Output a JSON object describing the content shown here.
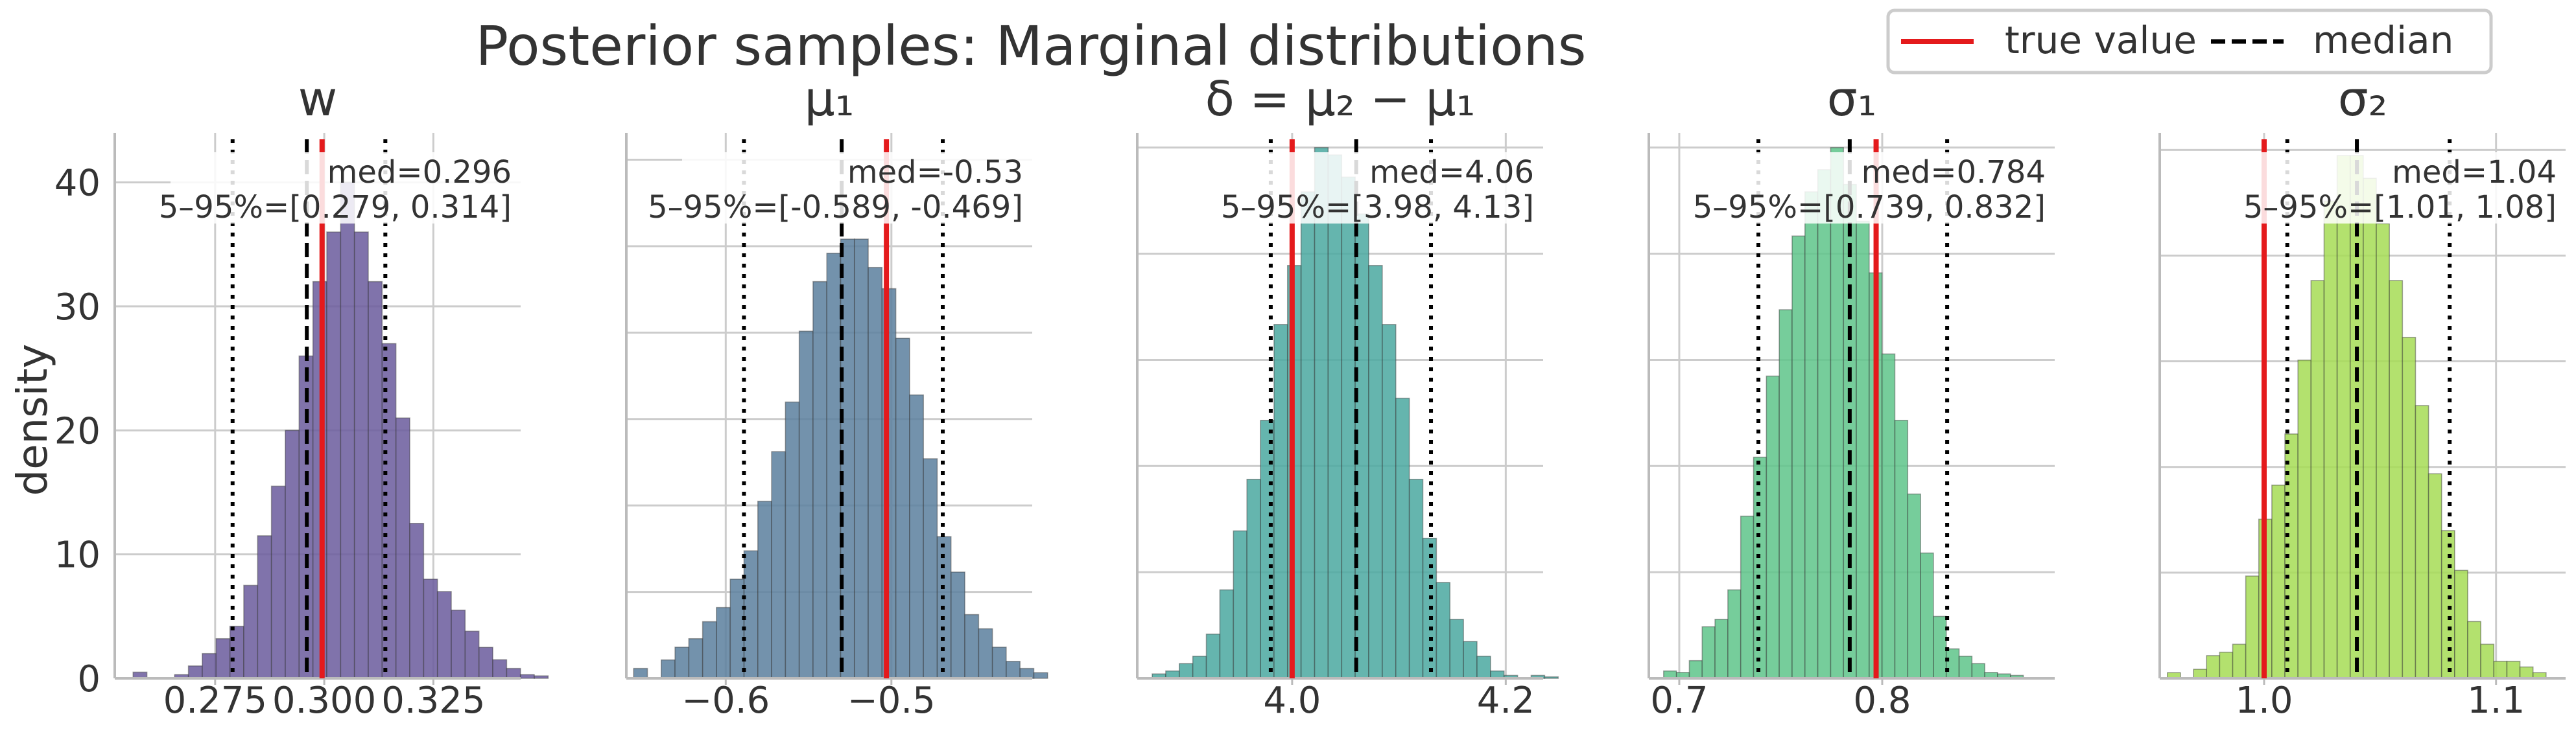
{
  "suptitle": "Posterior samples: Marginal distributions",
  "ylabel": "density",
  "legend": {
    "placement": "top-right",
    "entries": [
      {
        "label": "true value",
        "color": "#e41a1c",
        "style": "solid"
      },
      {
        "label": "median",
        "color": "#000000",
        "style": "dashed"
      }
    ]
  },
  "chart_data": [
    {
      "type": "histogram",
      "title": "w",
      "color": "#6a5a9c",
      "xlim": [
        0.252,
        0.345
      ],
      "ylim": [
        0,
        44
      ],
      "xticks": [
        0.275,
        0.3,
        0.325
      ],
      "xticklabels": [
        "0.275",
        "0.300",
        "0.325"
      ],
      "yticks": [
        0,
        10,
        20,
        30,
        40
      ],
      "yticklabels": [
        "0",
        "10",
        "20",
        "30",
        "40"
      ],
      "bin_start": 0.2562,
      "bin_width": 0.00317,
      "counts": [
        0.5,
        0,
        0,
        0.3,
        1,
        2,
        3.2,
        4.2,
        7.5,
        11.5,
        15.5,
        20,
        26,
        32,
        36,
        40,
        36,
        32,
        27,
        21,
        12.5,
        8,
        7,
        5.5,
        3.8,
        2.5,
        1.5,
        0.8,
        0.3,
        0.2
      ],
      "true_value": 0.2995,
      "median": 0.296,
      "p05": 0.279,
      "p95": 0.314,
      "annotation": {
        "med": "med=0.296",
        "interval": "5–95%=[0.279, 0.314]"
      }
    },
    {
      "type": "histogram",
      "title": "μ₁",
      "color": "#5a7f9e",
      "xlim": [
        -0.66,
        -0.415
      ],
      "ylim": [
        0,
        38.5
      ],
      "xticks": [
        -0.6,
        -0.5
      ],
      "xticklabels": [
        "−0.6",
        "−0.5"
      ],
      "yticks": [
        0,
        6.1,
        12.2,
        18.3,
        24.4,
        30.5,
        36.6
      ],
      "yticklabels": [],
      "bin_start": -0.6556,
      "bin_width": 0.00833,
      "counts": [
        0.7,
        0,
        1.3,
        2.2,
        2.8,
        4,
        5,
        7,
        9,
        12.5,
        16,
        19.5,
        24.5,
        28,
        30,
        31,
        31,
        29,
        27.5,
        24,
        20,
        15.5,
        10,
        7.5,
        4.5,
        3.5,
        2.2,
        1.2,
        0.7,
        0.4
      ],
      "true_value": -0.503,
      "median": -0.53,
      "p05": -0.589,
      "p95": -0.469,
      "annotation": {
        "med": "med=-0.53",
        "interval": "5–95%=[-0.589, -0.469]"
      }
    },
    {
      "type": "histogram",
      "title": "δ = μ₂ − μ₁",
      "color": "#4aa8a0",
      "xlim": [
        3.855,
        4.235
      ],
      "ylim": [
        0,
        37
      ],
      "xticks": [
        4.0,
        4.2
      ],
      "xticklabels": [
        "4.0",
        "4.2"
      ],
      "yticks": [
        0,
        7.2,
        14.4,
        21.6,
        28.8,
        36.0
      ],
      "yticklabels": [],
      "bin_start": 3.869,
      "bin_width": 0.01267,
      "counts": [
        0.3,
        0.5,
        1,
        1.5,
        3,
        6,
        10,
        13.5,
        17.5,
        24,
        28,
        33,
        36,
        35.5,
        34,
        31.5,
        28,
        24,
        19,
        13.5,
        9.5,
        6.5,
        4,
        2.5,
        1.5,
        0.5,
        0.2,
        0,
        0.2,
        0.1
      ],
      "true_value": 4.0,
      "median": 4.06,
      "p05": 3.98,
      "p95": 4.13,
      "annotation": {
        "med": "med=4.06",
        "interval": "5–95%=[3.98, 4.13]"
      }
    },
    {
      "type": "histogram",
      "title": "σ₁",
      "color": "#5ec48a",
      "xlim": [
        0.685,
        0.885
      ],
      "ylim": [
        0,
        37
      ],
      "xticks": [
        0.7,
        0.8
      ],
      "xticklabels": [
        "0.7",
        "0.8"
      ],
      "yticks": [
        0,
        7.2,
        14.4,
        21.6,
        28.8,
        36.0
      ],
      "yticklabels": [],
      "bin_start": 0.6923,
      "bin_width": 0.00633,
      "counts": [
        0.5,
        0.4,
        1.2,
        3.5,
        4,
        6,
        11,
        15,
        20.5,
        25,
        30,
        33,
        34.5,
        36,
        33.5,
        31,
        27.5,
        22,
        17.5,
        12.5,
        8.5,
        4.2,
        2,
        1.5,
        1,
        0.4,
        0.3,
        0.2,
        0,
        0
      ],
      "true_value": 0.797,
      "median": 0.784,
      "p05": 0.739,
      "p95": 0.832,
      "annotation": {
        "med": "med=0.784",
        "interval": "5–95%=[0.739, 0.832]"
      }
    },
    {
      "type": "histogram",
      "title": "σ₂",
      "color": "#a6dc55",
      "xlim": [
        0.955,
        1.13
      ],
      "ylim": [
        0,
        48
      ],
      "xticks": [
        1.0,
        1.1
      ],
      "xticklabels": [
        "1.0",
        "1.1"
      ],
      "yticks": [
        0,
        9.3,
        18.6,
        27.9,
        37.2,
        46.5
      ],
      "yticklabels": [],
      "bin_start": 0.9583,
      "bin_width": 0.00563,
      "counts": [
        0.5,
        0,
        0.8,
        2,
        2.3,
        3,
        9,
        14,
        17,
        21.5,
        28,
        35,
        42,
        46,
        46,
        44,
        40,
        35,
        30,
        24,
        18,
        13,
        9.5,
        5,
        3,
        1.5,
        1.5,
        1,
        0.5,
        0
      ],
      "true_value": 1.0,
      "median": 1.04,
      "p05": 1.01,
      "p95": 1.08,
      "annotation": {
        "med": "med=1.04",
        "interval": "5–95%=[1.01, 1.08]"
      }
    }
  ]
}
